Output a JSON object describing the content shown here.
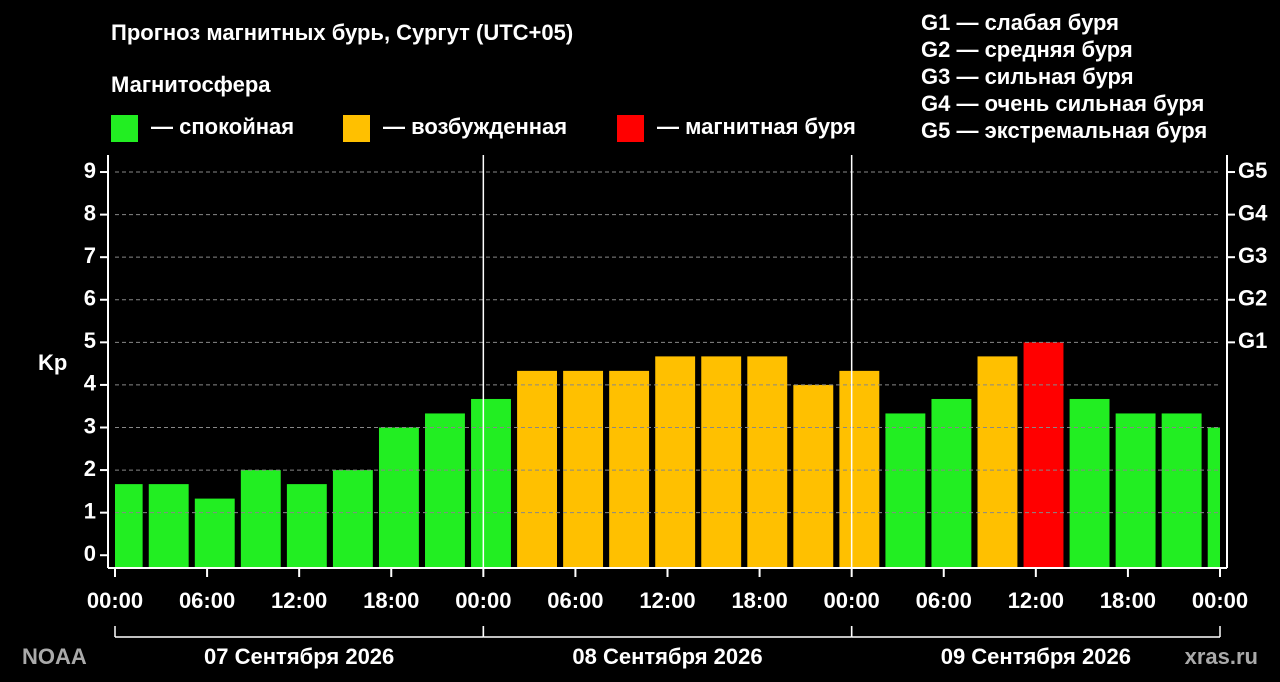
{
  "chart_data": {
    "type": "bar",
    "title": "Прогноз магнитных бурь, Сургут (UTC+05)",
    "legend_title": "Магнитосфера",
    "legend": [
      {
        "label": "— спокойная",
        "color": "#22ee22"
      },
      {
        "label": "— возбужденная",
        "color": "#ffc000"
      },
      {
        "label": "— магнитная буря",
        "color": "#ff0000"
      }
    ],
    "storm_scale": [
      "G1 — слабая буря",
      "G2 — средняя буря",
      "G3 — сильная буря",
      "G4 — очень сильная буря",
      "G5 — экстремальная буря"
    ],
    "y_label": "Kp",
    "x": [
      0.5,
      3.5,
      6.5,
      9.5,
      12.5,
      15.5,
      18.5,
      21.5,
      24.5,
      27.5,
      30.5,
      33.5,
      36.5,
      39.5,
      42.5,
      45.5,
      48.5,
      51.5,
      54.5,
      57.5,
      60.5,
      63.5,
      66.5,
      69.5,
      72.5
    ],
    "values": [
      1.67,
      1.67,
      1.33,
      2,
      1.67,
      2,
      3,
      3.33,
      3.67,
      4.33,
      4.33,
      4.33,
      4.67,
      4.67,
      4.67,
      4,
      4.33,
      3.33,
      3.67,
      4.67,
      5,
      3.67,
      3.33,
      3.33,
      3
    ],
    "colors": [
      "#22ee22",
      "#22ee22",
      "#22ee22",
      "#22ee22",
      "#22ee22",
      "#22ee22",
      "#22ee22",
      "#22ee22",
      "#22ee22",
      "#ffc000",
      "#ffc000",
      "#ffc000",
      "#ffc000",
      "#ffc000",
      "#ffc000",
      "#ffc000",
      "#ffc000",
      "#22ee22",
      "#22ee22",
      "#ffc000",
      "#ff0000",
      "#22ee22",
      "#22ee22",
      "#22ee22",
      "#22ee22"
    ],
    "xlim": [
      0,
      72
    ],
    "xticks": [
      {
        "value": 0,
        "label": "00:00"
      },
      {
        "value": 6,
        "label": "06:00"
      },
      {
        "value": 12,
        "label": "12:00"
      },
      {
        "value": 18,
        "label": "18:00"
      },
      {
        "value": 24,
        "label": "00:00"
      },
      {
        "value": 30,
        "label": "06:00"
      },
      {
        "value": 36,
        "label": "12:00"
      },
      {
        "value": 42,
        "label": "18:00"
      },
      {
        "value": 48,
        "label": "00:00"
      },
      {
        "value": 54,
        "label": "06:00"
      },
      {
        "value": 60,
        "label": "12:00"
      },
      {
        "value": 66,
        "label": "18:00"
      },
      {
        "value": 72,
        "label": "00:00"
      }
    ],
    "ylim": [
      -0.3,
      9.4
    ],
    "yticks": [
      0,
      1,
      2,
      3,
      4,
      5,
      6,
      7,
      8,
      9
    ],
    "y2lim": [
      -0.3,
      9.4
    ],
    "y2ticks": [
      {
        "value": 5,
        "label": "G1"
      },
      {
        "value": 6,
        "label": "G2"
      },
      {
        "value": 7,
        "label": "G3"
      },
      {
        "value": 8,
        "label": "G4"
      },
      {
        "value": 9,
        "label": "G5"
      }
    ],
    "days": [
      {
        "label": "07 Сентября 2026",
        "start": 0,
        "end": 24
      },
      {
        "label": "08 Сентября 2026",
        "start": 24,
        "end": 48
      },
      {
        "label": "09 Сентября 2026",
        "start": 48,
        "end": 72
      }
    ],
    "source": "NOAA",
    "site": "xras.ru",
    "grid": true
  }
}
